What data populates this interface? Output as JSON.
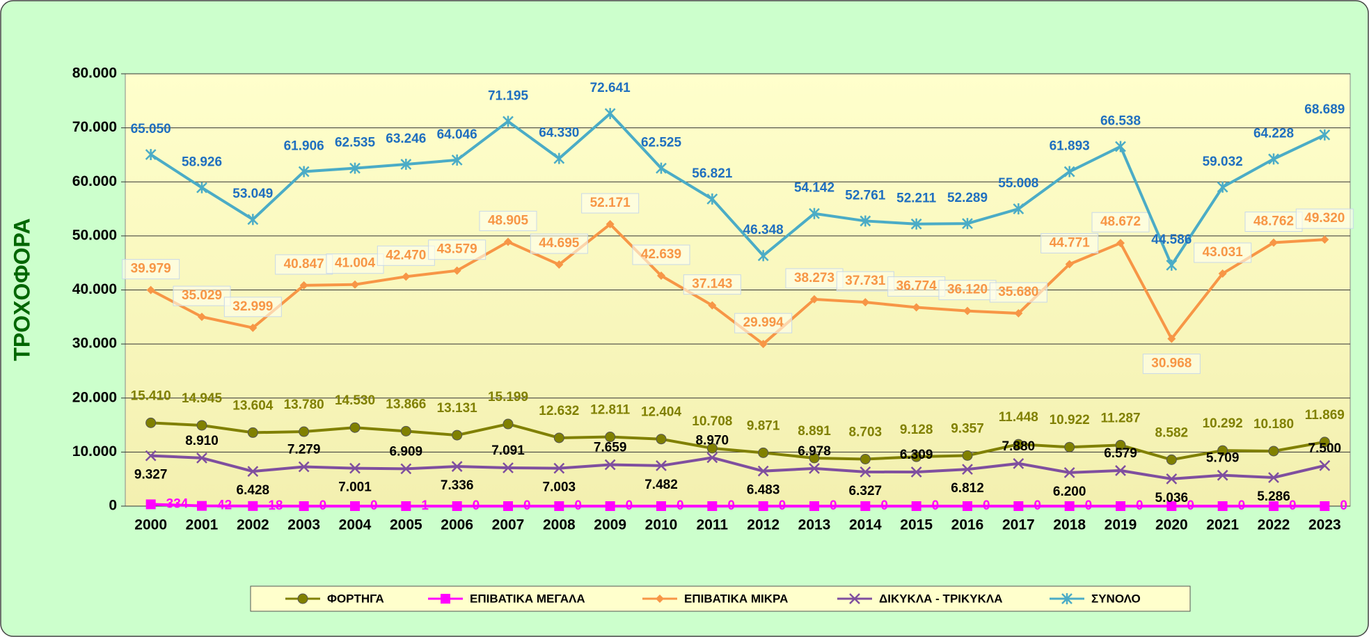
{
  "chart_data": {
    "type": "line",
    "y_label": "ΤΡΟΧΟΦΟΡΑ",
    "categories": [
      "2000",
      "2001",
      "2002",
      "2003",
      "2004",
      "2005",
      "2006",
      "2007",
      "2008",
      "2009",
      "2010",
      "2011",
      "2012",
      "2013",
      "2014",
      "2015",
      "2016",
      "2017",
      "2018",
      "2019",
      "2020",
      "2021",
      "2022",
      "2023"
    ],
    "ylim": [
      0,
      80000
    ],
    "yticks": [
      {
        "value": 0,
        "label": "0"
      },
      {
        "value": 10000,
        "label": "10.000"
      },
      {
        "value": 20000,
        "label": "20.000"
      },
      {
        "value": 30000,
        "label": "30.000"
      },
      {
        "value": 40000,
        "label": "40.000"
      },
      {
        "value": 50000,
        "label": "50.000"
      },
      {
        "value": 60000,
        "label": "60.000"
      },
      {
        "value": 70000,
        "label": "70.000"
      },
      {
        "value": 80000,
        "label": "80.000"
      }
    ],
    "grid": true,
    "legend": "bottom",
    "series": [
      {
        "name": "ΦΟΡΤΗΓΑ",
        "color": "#808000",
        "label_color": "#808000",
        "marker": "circle",
        "values": [
          15410,
          14945,
          13604,
          13780,
          14530,
          13866,
          13131,
          15199,
          12632,
          12811,
          12404,
          10708,
          9871,
          8891,
          8703,
          9128,
          9357,
          11448,
          10922,
          11287,
          8582,
          10292,
          10180,
          11869
        ],
        "value_labels": [
          "15.410",
          "14.945",
          "13.604",
          "13.780",
          "14.530",
          "13.866",
          "13.131",
          "15.199",
          "12.632",
          "12.811",
          "12.404",
          "10.708",
          "9.871",
          "8.891",
          "8.703",
          "9.128",
          "9.357",
          "11.448",
          "10.922",
          "11.287",
          "8.582",
          "10.292",
          "10.180",
          "11.869"
        ]
      },
      {
        "name": "ΕΠΙΒΑΤΙΚΑ ΜΕΓΑΛΑ",
        "color": "#ff00ff",
        "label_color": "#ff00ff",
        "marker": "square",
        "values": [
          334,
          42,
          18,
          0,
          0,
          1,
          0,
          0,
          0,
          0,
          0,
          0,
          0,
          0,
          0,
          0,
          0,
          0,
          0,
          0,
          0,
          0,
          0,
          0
        ]
      },
      {
        "name": "ΕΠΙΒΑΤΙΚΑ ΜΙΚΡΑ",
        "color": "#f79646",
        "label_color": "#f79646",
        "marker": "diamond",
        "values": [
          39979,
          35029,
          32999,
          40847,
          41004,
          42470,
          43579,
          48905,
          44695,
          52171,
          42639,
          37143,
          29994,
          38273,
          37731,
          36774,
          36120,
          35680,
          44771,
          48672,
          30968,
          43031,
          48762,
          49320
        ],
        "value_labels": [
          "39.979",
          "35.029",
          "32.999",
          "40.847",
          "41.004",
          "42.470",
          "43.579",
          "48.905",
          "44.695",
          "52.171",
          "42.639",
          "37.143",
          "29.994",
          "38.273",
          "37.731",
          "36.774",
          "36.120",
          "35.680",
          "44.771",
          "48.672",
          "30.968",
          "43.031",
          "48.762",
          "49.320"
        ]
      },
      {
        "name": "ΔΙΚΥΚΛΑ - ΤΡΙΚΥΚΛΑ",
        "color": "#7f4f9f",
        "label_color": "#000000",
        "marker": "x",
        "values": [
          9327,
          8910,
          6428,
          7279,
          7001,
          6909,
          7336,
          7091,
          7003,
          7659,
          7482,
          8970,
          6483,
          6978,
          6327,
          6309,
          6812,
          7880,
          6200,
          6579,
          5036,
          5709,
          5286,
          7500
        ],
        "value_labels": [
          "9.327",
          "8.910",
          "6.428",
          "7.279",
          "7.001",
          "6.909",
          "7.336",
          "7.091",
          "7.003",
          "7.659",
          "7.482",
          "8.970",
          "6.483",
          "6.978",
          "6.327",
          "6.309",
          "6.812",
          "7.880",
          "6.200",
          "6.579",
          "5.036",
          "5.709",
          "5.286",
          "7.500"
        ]
      },
      {
        "name": "ΣΥΝΟΛΟ",
        "color": "#4bacc6",
        "label_color": "#1f6fbf",
        "marker": "star",
        "values": [
          65050,
          58926,
          53049,
          61906,
          62535,
          63246,
          64046,
          71195,
          64330,
          72641,
          62525,
          56821,
          46348,
          54142,
          52761,
          52211,
          52289,
          55008,
          61893,
          66538,
          44586,
          59032,
          64228,
          68689
        ],
        "value_labels": [
          "65.050",
          "58.926",
          "53.049",
          "61.906",
          "62.535",
          "63.246",
          "64.046",
          "71.195",
          "64.330",
          "72.641",
          "62.525",
          "56.821",
          "46.348",
          "54.142",
          "52.761",
          "52.211",
          "52.289",
          "55.008",
          "61.893",
          "66.538",
          "44.586",
          "59.032",
          "64.228",
          "68.689"
        ]
      }
    ]
  }
}
